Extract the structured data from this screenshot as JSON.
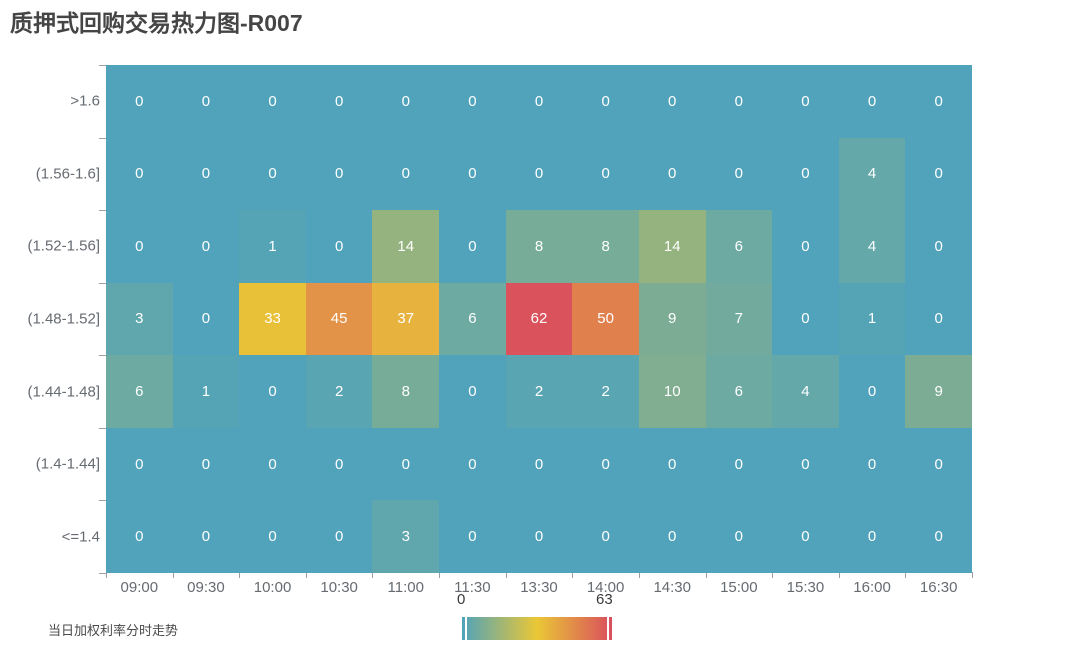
{
  "title": "质押式回购交易热力图-R007",
  "legend": {
    "items": [
      {
        "label": "当日加权利率分时走势",
        "marker": "line-marker",
        "marker_color": "#ffffff"
      }
    ]
  },
  "visual_map": {
    "min_label": "0",
    "max_label": "63"
  },
  "chart_data": {
    "type": "heatmap",
    "title": "质押式回购交易热力图-R007",
    "x_categories": [
      "09:00",
      "09:30",
      "10:00",
      "10:30",
      "11:00",
      "11:30",
      "13:30",
      "14:00",
      "14:30",
      "15:00",
      "15:30",
      "16:00",
      "16:30"
    ],
    "y_categories": [
      ">1.6",
      "(1.56-1.6]",
      "(1.52-1.56]",
      "(1.48-1.52]",
      "(1.44-1.48]",
      "(1.4-1.44]",
      "<=1.4"
    ],
    "y_order": "top_to_bottom",
    "series": [
      {
        "name": ">1.6",
        "values": [
          0,
          0,
          0,
          0,
          0,
          0,
          0,
          0,
          0,
          0,
          0,
          0,
          0
        ]
      },
      {
        "name": "(1.56-1.6]",
        "values": [
          0,
          0,
          0,
          0,
          0,
          0,
          0,
          0,
          0,
          0,
          0,
          4,
          0
        ]
      },
      {
        "name": "(1.52-1.56]",
        "values": [
          0,
          0,
          1,
          0,
          14,
          0,
          8,
          8,
          14,
          6,
          0,
          4,
          0
        ]
      },
      {
        "name": "(1.48-1.52]",
        "values": [
          3,
          0,
          33,
          45,
          37,
          6,
          62,
          50,
          9,
          7,
          0,
          1,
          0
        ]
      },
      {
        "name": "(1.44-1.48]",
        "values": [
          6,
          1,
          0,
          2,
          8,
          0,
          2,
          2,
          10,
          6,
          4,
          0,
          9
        ]
      },
      {
        "name": "(1.4-1.44]",
        "values": [
          0,
          0,
          0,
          0,
          0,
          0,
          0,
          0,
          0,
          0,
          0,
          0,
          0
        ]
      },
      {
        "name": "<=1.4",
        "values": [
          0,
          0,
          0,
          0,
          3,
          0,
          0,
          0,
          0,
          0,
          0,
          0,
          0
        ]
      }
    ],
    "cell_label_color": "#ffffff",
    "visual_map": {
      "min": 0,
      "max": 63,
      "orient": "horizontal",
      "colors": [
        "#50a3ba",
        "#eac736",
        "#d94e5d"
      ]
    },
    "line_series": {
      "name": "当日加权利率分时走势",
      "color": "#f8f3e3",
      "row": "(1.48-1.52]",
      "flat": true,
      "spans_x": [
        "09:00",
        "16:30"
      ]
    },
    "legend_position": "bottom-left",
    "grid": false
  }
}
